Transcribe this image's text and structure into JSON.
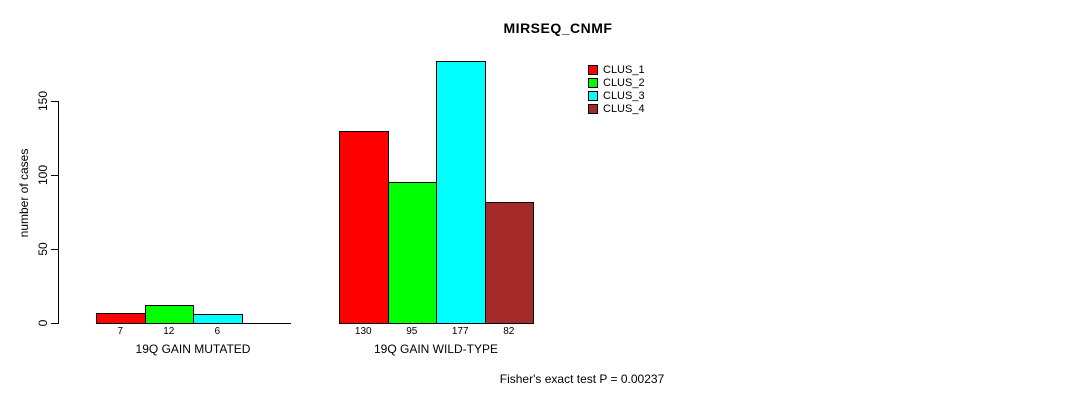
{
  "chart_data": {
    "type": "bar",
    "title": "MIRSEQ_CNMF",
    "ylabel": "number of cases",
    "xlabel": "",
    "categories": [
      "19Q GAIN MUTATED",
      "19Q GAIN WILD-TYPE"
    ],
    "series": [
      {
        "name": "CLUS_1",
        "color": "#ff0000",
        "values": [
          7,
          130
        ]
      },
      {
        "name": "CLUS_2",
        "color": "#00ff00",
        "values": [
          12,
          95
        ]
      },
      {
        "name": "CLUS_3",
        "color": "#00ffff",
        "values": [
          6,
          177
        ]
      },
      {
        "name": "CLUS_4",
        "color": "#a52a2a",
        "values": [
          0,
          82
        ]
      }
    ],
    "yticks": [
      0,
      50,
      100,
      150
    ],
    "ylim": [
      0,
      150
    ],
    "grid": false,
    "legend_position": "top-right",
    "bar_value_labels_shown": true,
    "zero_value_labels_hidden": true,
    "annotation": "Fisher's exact test P = 0.00237",
    "text_color": "#000000",
    "background_color": "#ffffff"
  }
}
